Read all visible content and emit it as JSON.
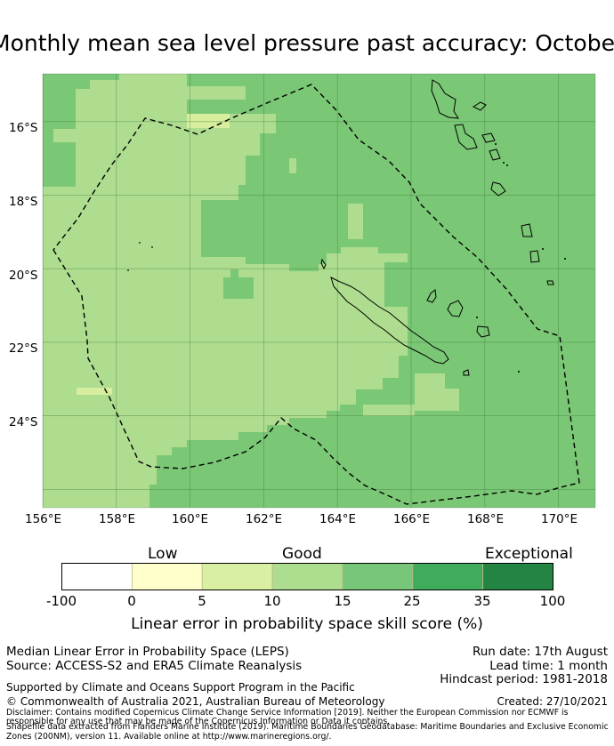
{
  "title": "Monthly mean sea level pressure past accuracy: October",
  "map": {
    "lat_labels": [
      "16°S",
      "18°S",
      "20°S",
      "22°S",
      "24°S"
    ],
    "lon_labels": [
      "156°E",
      "158°E",
      "160°E",
      "162°E",
      "164°E",
      "166°E",
      "168°E",
      "170°E"
    ],
    "lon_range": [
      156,
      171
    ],
    "lat_range": [
      -14.7,
      -26.5
    ],
    "gridlines": true,
    "colors": {
      "good": "#aedd8f",
      "better": "#7ac775",
      "fair": "#d7ee9f",
      "border": "#000000",
      "land": "#000000",
      "grid": "#3f7a3a"
    }
  },
  "colorbar": {
    "category_labels": [
      "Low",
      "Good",
      "Exceptional"
    ],
    "ticks": [
      "-100",
      "0",
      "5",
      "10",
      "15",
      "25",
      "35",
      "100"
    ],
    "colors": [
      "#ffffff",
      "#ffffcc",
      "#d9f0a3",
      "#addd8e",
      "#78c679",
      "#41ab5d",
      "#238443"
    ],
    "title": "Linear error in probability space skill score (%)"
  },
  "footer": {
    "left_line1": "Median Linear Error in Probability Space (LEPS)",
    "left_line2": "Source: ACCESS-S2 and ERA5 Climate Reanalysis",
    "right_line1": "Run date: 17th August",
    "right_line2": "Lead time: 1 month",
    "right_line3": "Hindcast period: 1981-2018",
    "support": "Supported by Climate and Oceans Support Program in the Pacific",
    "copyright": "© Commonwealth of Australia 2021, Australian Bureau of Meteorology",
    "created": "Created: 27/10/2021",
    "disclaimer1": "Disclaimer: Contains modified Copernicus Climate Change Service Information [2019]. Neither the European Commission nor ECMWF is",
    "disclaimer2": "responsible for any use that may be made of the Copernicus Information or Data it contains.",
    "disclaimer3": "Shapefile data extracted from Flanders Marine Institute (2019). Maritime Boundaries Geodatabase: Maritime Boundaries and Exclusive Economic",
    "disclaimer4": "Zones (200NM), version 11. Available online at http://www.marineregions.org/."
  }
}
